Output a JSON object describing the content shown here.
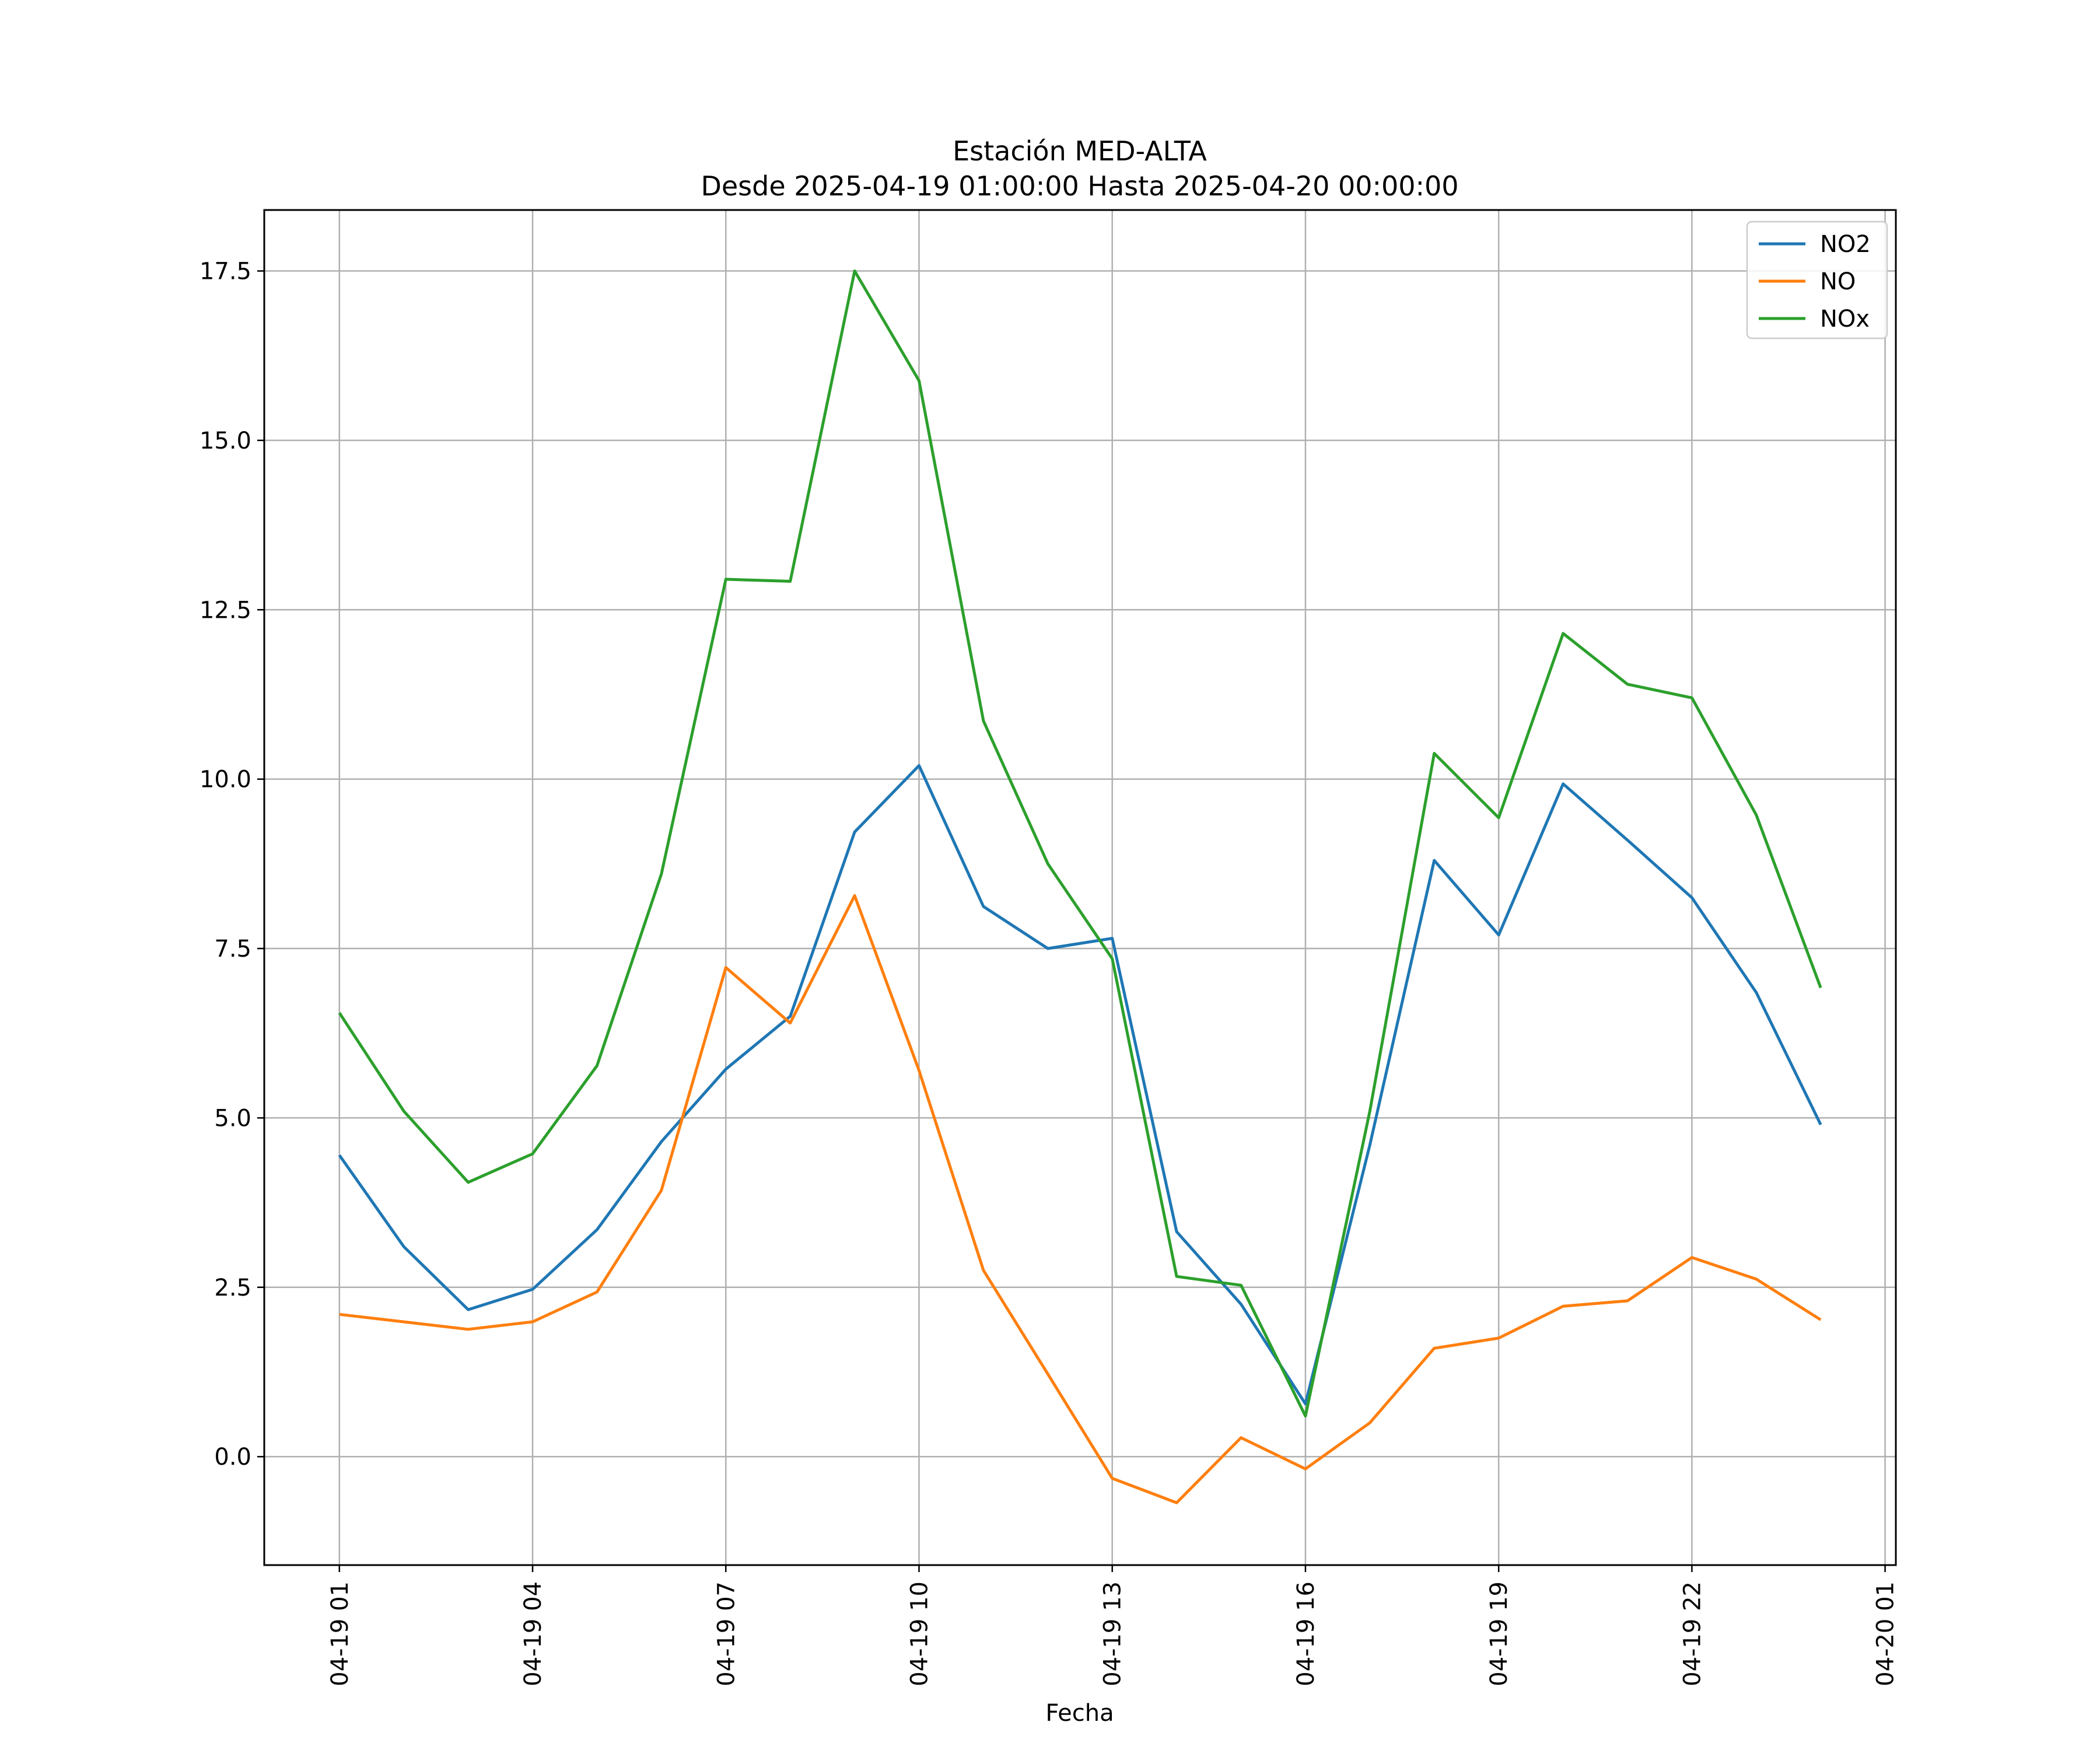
{
  "chart_data": {
    "type": "line",
    "title": "Estación MED-ALTA",
    "subtitle": "Desde 2025-04-19 01:00:00 Hasta 2025-04-20 00:00:00",
    "xlabel": "Fecha",
    "ylabel": "",
    "x": [
      "2025-04-19 01:00",
      "2025-04-19 02:00",
      "2025-04-19 03:00",
      "2025-04-19 04:00",
      "2025-04-19 05:00",
      "2025-04-19 06:00",
      "2025-04-19 07:00",
      "2025-04-19 08:00",
      "2025-04-19 09:00",
      "2025-04-19 10:00",
      "2025-04-19 11:00",
      "2025-04-19 12:00",
      "2025-04-19 13:00",
      "2025-04-19 14:00",
      "2025-04-19 15:00",
      "2025-04-19 16:00",
      "2025-04-19 17:00",
      "2025-04-19 18:00",
      "2025-04-19 19:00",
      "2025-04-19 20:00",
      "2025-04-19 21:00",
      "2025-04-19 22:00",
      "2025-04-19 23:00",
      "2025-04-20 00:00"
    ],
    "series": [
      {
        "name": "NO2",
        "color": "#1f77b4",
        "values": [
          4.45,
          3.1,
          2.17,
          2.47,
          3.35,
          4.65,
          5.72,
          6.5,
          9.22,
          10.2,
          8.12,
          7.5,
          7.65,
          3.32,
          2.25,
          0.78,
          4.6,
          8.8,
          7.7,
          9.93,
          9.1,
          8.25,
          6.85,
          4.9
        ]
      },
      {
        "name": "NO",
        "color": "#ff7f0e",
        "values": [
          2.1,
          1.99,
          1.88,
          1.99,
          2.43,
          3.93,
          7.22,
          6.4,
          8.28,
          5.7,
          2.75,
          1.22,
          -0.32,
          -0.68,
          0.28,
          -0.18,
          0.5,
          1.6,
          1.75,
          2.22,
          2.3,
          2.94,
          2.62,
          2.02
        ]
      },
      {
        "name": "NOx",
        "color": "#2ca02c",
        "values": [
          6.55,
          5.1,
          4.05,
          4.47,
          5.77,
          8.6,
          12.95,
          12.92,
          17.5,
          15.88,
          10.86,
          8.75,
          7.35,
          2.66,
          2.53,
          0.6,
          5.1,
          10.38,
          9.43,
          12.15,
          11.4,
          11.2,
          9.47,
          6.92
        ]
      }
    ],
    "x_ticks": [
      "04-19 01",
      "04-19 04",
      "04-19 07",
      "04-19 10",
      "04-19 13",
      "04-19 16",
      "04-19 19",
      "04-19 22",
      "04-20 01"
    ],
    "y_ticks": [
      "0.0",
      "2.5",
      "5.0",
      "7.5",
      "10.0",
      "12.5",
      "15.0",
      "17.5"
    ],
    "ylim": [
      -1.6,
      18.4
    ],
    "xlim": [
      "2025-04-18 23:50",
      "2025-04-20 01:10"
    ],
    "grid": true,
    "legend_position": "top-right"
  }
}
